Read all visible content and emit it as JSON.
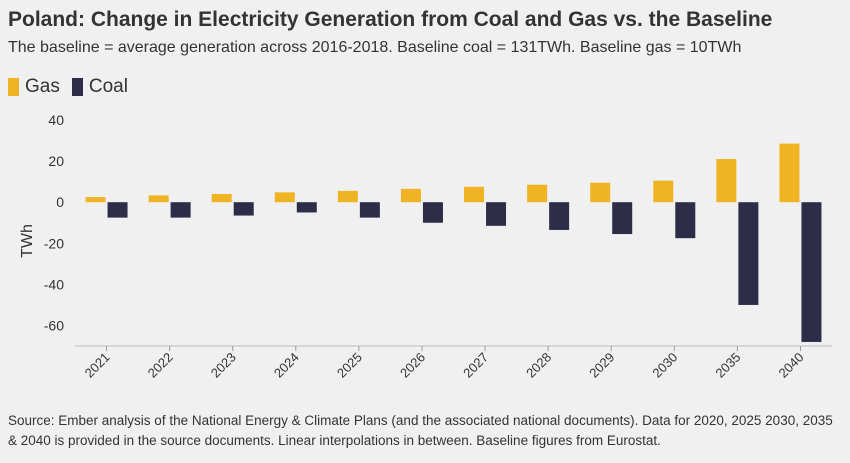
{
  "title": "Poland: Change in Electricity Generation from Coal and Gas vs. the Baseline",
  "subtitle": "The baseline = average generation across 2016-2018. Baseline coal = 131TWh. Baseline gas = 10TWh",
  "footer": "Source: Ember analysis of the National Energy & Climate Plans (and the associated national documents). Data for 2020, 2025 2030, 2035 & 2040 is provided in the source documents. Linear interpolations in between. Baseline figures from Eurostat.",
  "colors": {
    "gas": "#f0b323",
    "coal": "#2d2d4a",
    "background": "#f0f0f0",
    "grid": "#cfcfcf"
  },
  "chart_data": {
    "type": "bar",
    "ylabel": "TWh",
    "xlabel": "",
    "ylim": [
      -70,
      40
    ],
    "yticks": [
      40,
      20,
      0,
      -20,
      -40,
      -60
    ],
    "legend_position": "top-left",
    "grid": false,
    "categories": [
      "2021",
      "2022",
      "2023",
      "2024",
      "2025",
      "2026",
      "2027",
      "2028",
      "2029",
      "2030",
      "2035",
      "2040"
    ],
    "series": [
      {
        "name": "Gas",
        "color": "#f0b323",
        "values": [
          2.5,
          3.3,
          4.0,
          4.8,
          5.5,
          6.5,
          7.5,
          8.5,
          9.5,
          10.5,
          21.0,
          28.5
        ]
      },
      {
        "name": "Coal",
        "color": "#2d2d4a",
        "values": [
          -7.5,
          -7.5,
          -6.5,
          -5.0,
          -7.5,
          -10.0,
          -11.5,
          -13.5,
          -15.5,
          -17.5,
          -50.0,
          -68.0
        ]
      }
    ]
  }
}
